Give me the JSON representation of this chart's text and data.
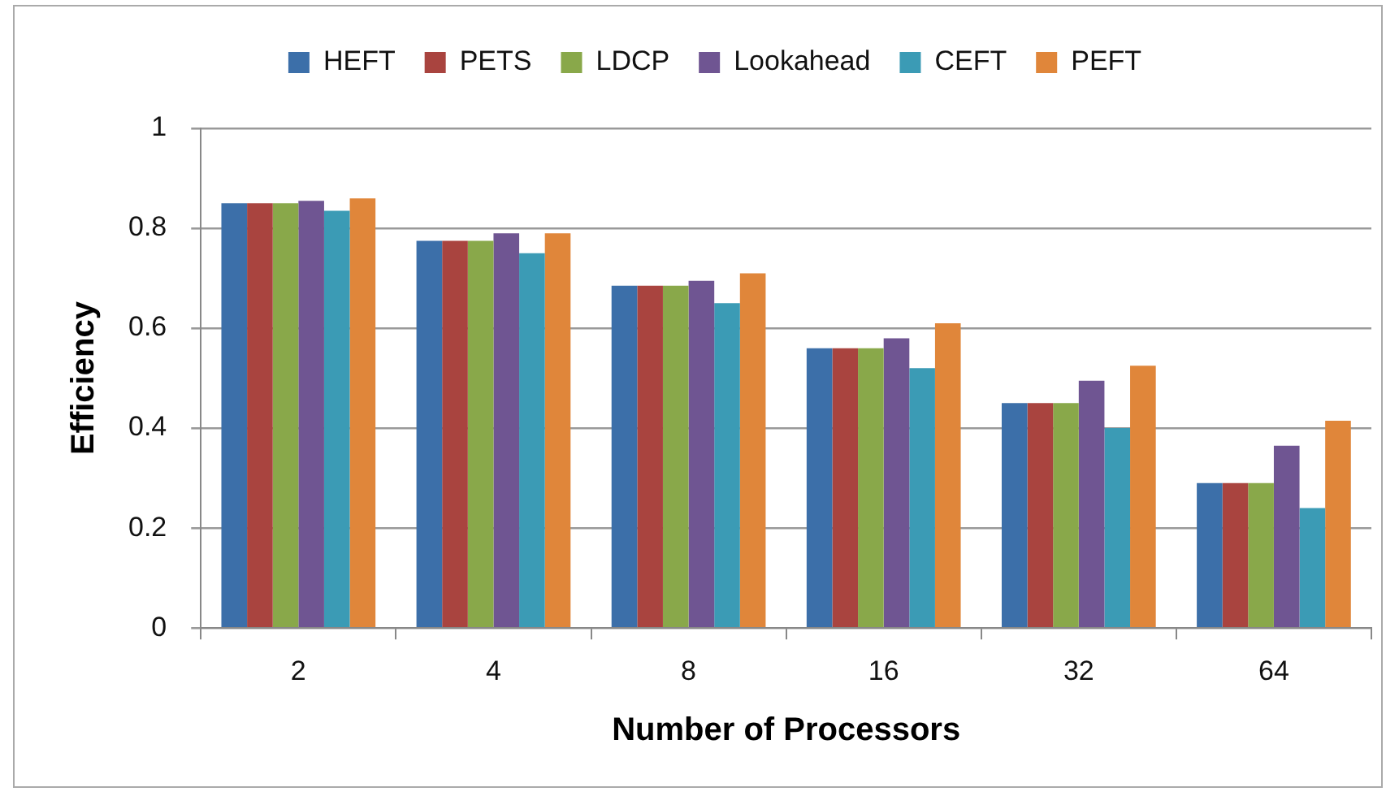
{
  "chart_data": {
    "type": "bar",
    "xlabel": "Number of Processors",
    "ylabel": "Efficiency",
    "categories": [
      "2",
      "4",
      "8",
      "16",
      "32",
      "64"
    ],
    "series": [
      {
        "name": "HEFT",
        "color": "#3c6fa9",
        "values": [
          0.85,
          0.775,
          0.685,
          0.56,
          0.45,
          0.29
        ]
      },
      {
        "name": "PETS",
        "color": "#a9443f",
        "values": [
          0.85,
          0.775,
          0.685,
          0.56,
          0.45,
          0.29
        ]
      },
      {
        "name": "LDCP",
        "color": "#89a84a",
        "values": [
          0.85,
          0.775,
          0.685,
          0.56,
          0.45,
          0.29
        ]
      },
      {
        "name": "Lookahead",
        "color": "#6f5592",
        "values": [
          0.855,
          0.79,
          0.695,
          0.58,
          0.495,
          0.365
        ]
      },
      {
        "name": "CEFT",
        "color": "#3b9bb5",
        "values": [
          0.835,
          0.75,
          0.65,
          0.52,
          0.4,
          0.24
        ]
      },
      {
        "name": "PEFT",
        "color": "#e0863a",
        "values": [
          0.86,
          0.79,
          0.71,
          0.61,
          0.525,
          0.415
        ]
      }
    ],
    "ylim": [
      0,
      1
    ],
    "yticks": [
      0,
      0.2,
      0.4,
      0.6,
      0.8,
      1
    ],
    "grid": "y",
    "legend": "top"
  }
}
